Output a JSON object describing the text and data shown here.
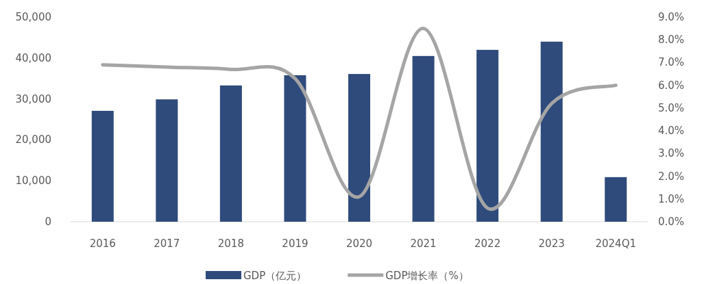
{
  "chart_data": {
    "type": "bar",
    "categories": [
      "2016",
      "2017",
      "2018",
      "2019",
      "2020",
      "2021",
      "2022",
      "2023",
      "2024Q1"
    ],
    "series": [
      {
        "name": "GDP（亿元）",
        "color": "#2f4b7c",
        "values": [
          27100,
          29900,
          33300,
          35800,
          36100,
          40500,
          42000,
          44000,
          10900
        ]
      },
      {
        "name": "GDP增长率（%）",
        "type": "line",
        "axis": "y2",
        "color": "#a5a5a5",
        "values": [
          6.9,
          6.8,
          6.7,
          6.3,
          1.1,
          8.5,
          0.6,
          5.2,
          6.0
        ]
      }
    ],
    "ylim": [
      0,
      50000
    ],
    "yticks": [
      {
        "value": 0,
        "label": "0"
      },
      {
        "value": 10000,
        "label": "10,000"
      },
      {
        "value": 20000,
        "label": "20,000"
      },
      {
        "value": 30000,
        "label": "30,000"
      },
      {
        "value": 40000,
        "label": "40,000"
      },
      {
        "value": 50000,
        "label": "50,000"
      }
    ],
    "y2lim": [
      0,
      9
    ],
    "y2ticks": [
      {
        "value": 0,
        "label": "0.0%"
      },
      {
        "value": 1,
        "label": "1.0%"
      },
      {
        "value": 2,
        "label": "2.0%"
      },
      {
        "value": 3,
        "label": "3.0%"
      },
      {
        "value": 4,
        "label": "4.0%"
      },
      {
        "value": 5,
        "label": "5.0%"
      },
      {
        "value": 6,
        "label": "6.0%"
      },
      {
        "value": 7,
        "label": "7.0%"
      },
      {
        "value": 8,
        "label": "8.0%"
      },
      {
        "value": 9,
        "label": "9.0%"
      }
    ],
    "legend": "bottom"
  }
}
